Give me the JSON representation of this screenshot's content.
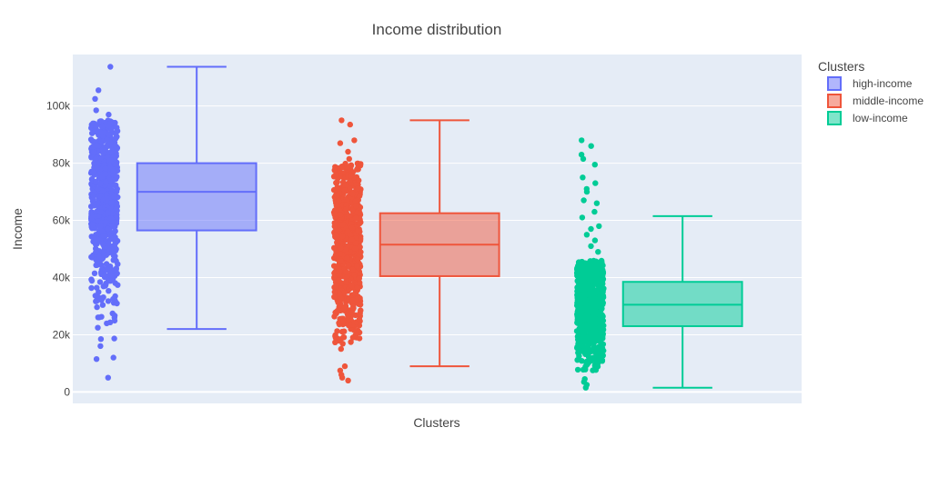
{
  "chart_data": {
    "type": "box",
    "title": "Income distribution",
    "xlabel": "Clusters",
    "ylabel": "Income",
    "ylim": [
      -4000,
      118000
    ],
    "y_ticks": [
      {
        "value": 0,
        "label": "0"
      },
      {
        "value": 20000,
        "label": "20k"
      },
      {
        "value": 40000,
        "label": "40k"
      },
      {
        "value": 60000,
        "label": "60k"
      },
      {
        "value": 80000,
        "label": "80k"
      },
      {
        "value": 100000,
        "label": "100k"
      }
    ],
    "grid": true,
    "background": "#e5ecf6",
    "legend": {
      "title": "Clusters",
      "placement": "top-right"
    },
    "series": [
      {
        "name": "high-income",
        "color": "#636efa",
        "fill": "rgba(99,110,250,0.5)",
        "min": 22000,
        "q1": 56500,
        "median": 70000,
        "q3": 80000,
        "max": 113700,
        "points_range": [
          15000,
          95000
        ],
        "outliers": [
          113700,
          105500,
          102500,
          98500,
          97000,
          12000,
          11500,
          5000
        ]
      },
      {
        "name": "middle-income",
        "color": "#ef553b",
        "fill": "rgba(239,85,59,0.5)",
        "min": 9000,
        "q1": 40500,
        "median": 51500,
        "q3": 62500,
        "max": 95000,
        "points_range": [
          14000,
          80000
        ],
        "outliers": [
          95000,
          93500,
          88000,
          87000,
          84000,
          81500,
          9000,
          7500,
          6000,
          5000,
          4000
        ]
      },
      {
        "name": "low-income",
        "color": "#00cc96",
        "fill": "rgba(0,204,150,0.5)",
        "min": 1500,
        "q1": 23000,
        "median": 30500,
        "q3": 38500,
        "max": 61500,
        "points_range": [
          7000,
          46000
        ],
        "outliers": [
          88000,
          86000,
          83000,
          81500,
          79500,
          75000,
          73000,
          71000,
          70000,
          67000,
          66000,
          63000,
          61000,
          58000,
          57000,
          55000,
          53000,
          51000,
          49000,
          4500,
          3500,
          2500,
          1500
        ]
      }
    ]
  }
}
